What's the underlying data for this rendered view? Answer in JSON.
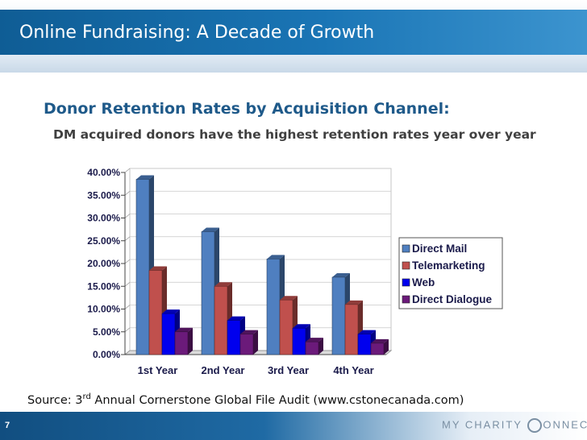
{
  "slide": {
    "title": "Online Fundraising: A Decade of Growth",
    "subtitle": "Donor Retention Rates by Acquisition Channel:",
    "subtext": "DM acquired donors have the highest retention rates year over year",
    "source_prefix": "Source:  3",
    "source_sup": "rd",
    "source_suffix": " Annual Cornerstone Global File Audit (www.cstonecanada.com)",
    "page_number": "7",
    "logo_text_1": "MY CHARITY",
    "logo_text_2": "ONNECTS"
  },
  "chart_data": {
    "type": "bar",
    "categories": [
      "1st Year",
      "2nd Year",
      "3rd Year",
      "4th Year"
    ],
    "series": [
      {
        "name": "Direct Mail",
        "color": "#4f7fc0",
        "values": [
          38.5,
          27.0,
          21.0,
          17.0
        ]
      },
      {
        "name": "Telemarketing",
        "color": "#c0504d",
        "values": [
          18.5,
          15.0,
          12.0,
          11.0
        ]
      },
      {
        "name": "Web",
        "color": "#0000ee",
        "values": [
          9.0,
          7.5,
          5.8,
          4.5
        ]
      },
      {
        "name": "Direct Dialogue",
        "color": "#6b1a7a",
        "values": [
          5.0,
          4.5,
          2.8,
          2.5
        ]
      }
    ],
    "y_ticks": [
      "0.00%",
      "5.00%",
      "10.00%",
      "15.00%",
      "20.00%",
      "25.00%",
      "30.00%",
      "35.00%",
      "40.00%"
    ],
    "ylim": [
      0,
      40
    ],
    "legend_position": "right",
    "grid": true
  }
}
